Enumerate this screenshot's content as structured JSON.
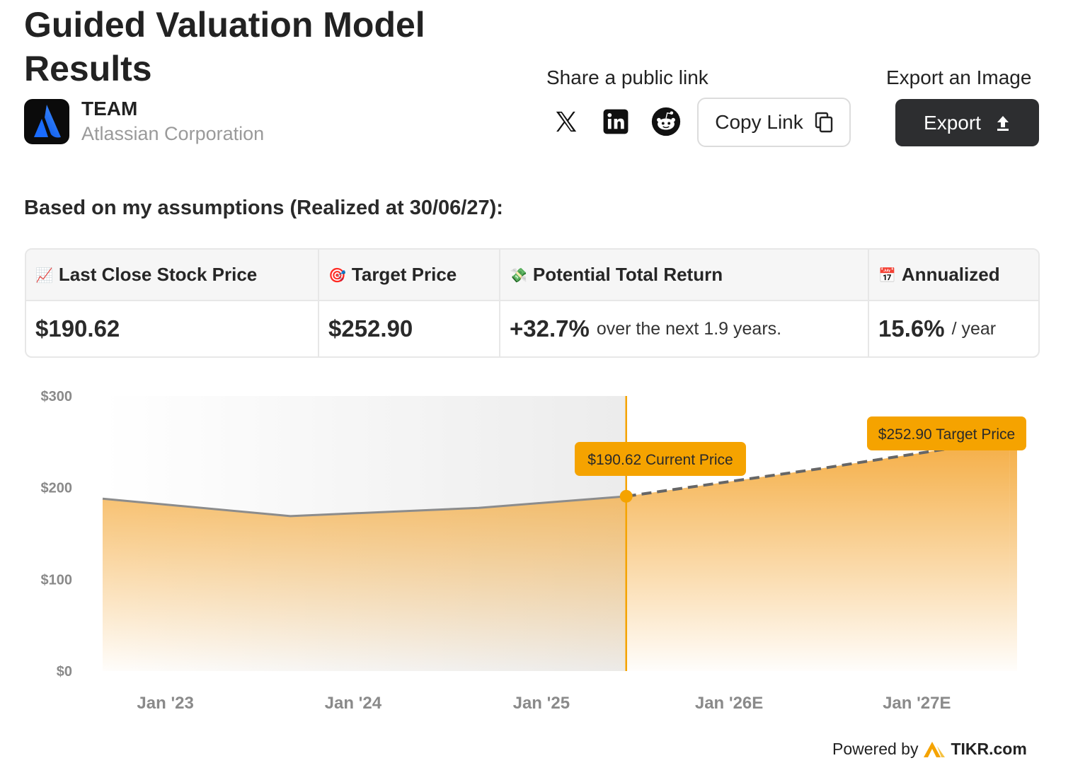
{
  "header": {
    "title": "Guided Valuation Model Results",
    "ticker": "TEAM",
    "company_name": "Atlassian Corporation"
  },
  "share": {
    "label": "Share a public link",
    "icons": [
      "x-icon",
      "linkedin-icon",
      "reddit-icon"
    ],
    "copy_label": "Copy Link"
  },
  "export": {
    "label": "Export an Image",
    "button_label": "Export"
  },
  "assumptions_text": "Based on my assumptions (Realized at 30/06/27):",
  "metrics": {
    "headers": [
      {
        "emoji": "📈",
        "label": "Last Close Stock Price"
      },
      {
        "emoji": "🎯",
        "label": "Target Price"
      },
      {
        "emoji": "💸",
        "label": "Potential Total Return"
      },
      {
        "emoji": "📅",
        "label": "Annualized"
      }
    ],
    "last_close": "$190.62",
    "target_price": "$252.90",
    "return_value": "+32.7%",
    "return_suffix": "over the next 1.9 years.",
    "annualized_value": "15.6%",
    "annualized_suffix": "/ year"
  },
  "footer": {
    "powered_by": "Powered by",
    "brand": "TIKR.com"
  },
  "colors": {
    "accent": "#f5a300",
    "accent_fill": "#f4a93a",
    "line": "#8c8c8c",
    "button_dark": "#2d2e30"
  },
  "chart_data": {
    "type": "area",
    "x_tick_labels": [
      "Jan '23",
      "Jan '24",
      "Jan '25",
      "Jan '26E",
      "Jan '27E"
    ],
    "y_tick_labels": [
      "$300",
      "$200",
      "$100",
      "$0"
    ],
    "ylim": [
      0,
      300
    ],
    "xlim": [
      "2022-09-01",
      "2027-07-15"
    ],
    "series": [
      {
        "style": "solid",
        "points": [
          {
            "x": "2022-09-01",
            "y": 188
          },
          {
            "x": "2023-09-01",
            "y": 169
          },
          {
            "x": "2024-09-01",
            "y": 178
          },
          {
            "x": "2025-06-15",
            "y": 190.62
          }
        ]
      },
      {
        "style": "dashed",
        "points": [
          {
            "x": "2025-06-15",
            "y": 190.62
          },
          {
            "x": "2026-06-30",
            "y": 221
          },
          {
            "x": "2027-06-30",
            "y": 252.9
          }
        ]
      }
    ],
    "divider_x": "2025-06-15",
    "annotations": [
      {
        "x": "2025-06-15",
        "y": 190.62,
        "label": "$190.62 Current Price"
      },
      {
        "x": "2027-06-30",
        "y": 252.9,
        "label": "$252.90 Target Price"
      }
    ]
  }
}
